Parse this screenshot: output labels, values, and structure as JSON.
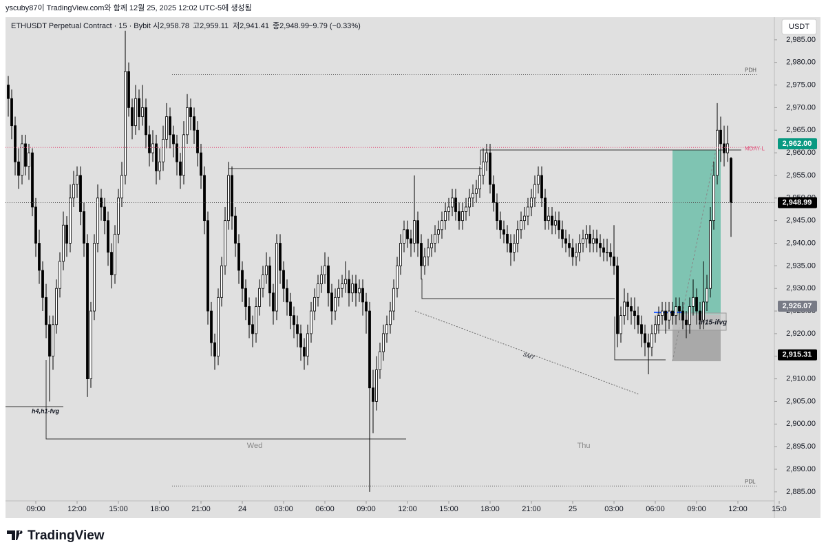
{
  "chart_data": {
    "type": "candlestick",
    "caption": "yscuby87이 TradingView.com와 함께 12월 25, 2025 12:02 UTC-5에 생성됨",
    "symbol": "ETHUSDT Perpetual Contract · 15 · Bybit",
    "ohlc_labels": [
      "시2,958.78",
      "고2,959.11",
      "저2,941.41",
      "종2,948.99",
      "−9.79 (−0.33%)"
    ],
    "currency": "USDT",
    "brand": "TradingView",
    "colors": {
      "up": "#ffffff",
      "down": "#000000",
      "outline": "#000000"
    },
    "ylim": [
      2883,
      2990
    ],
    "yticks": [
      {
        "value": 2885,
        "label": "2,885.00"
      },
      {
        "value": 2890,
        "label": "2,890.00"
      },
      {
        "value": 2895,
        "label": "2,895.00"
      },
      {
        "value": 2900,
        "label": "2,900.00"
      },
      {
        "value": 2905,
        "label": "2,905.00"
      },
      {
        "value": 2910,
        "label": "2,910.00"
      },
      {
        "value": 2915,
        "label": "2,915.00"
      },
      {
        "value": 2920,
        "label": "2,920.00"
      },
      {
        "value": 2925,
        "label": "2,925.00"
      },
      {
        "value": 2930,
        "label": "2,930.00"
      },
      {
        "value": 2935,
        "label": "2,935.00"
      },
      {
        "value": 2940,
        "label": "2,940.00"
      },
      {
        "value": 2945,
        "label": "2,945.00"
      },
      {
        "value": 2950,
        "label": "2,950.00"
      },
      {
        "value": 2955,
        "label": "2,955.00"
      },
      {
        "value": 2960,
        "label": "2,960.00"
      },
      {
        "value": 2965,
        "label": "2,965.00"
      },
      {
        "value": 2970,
        "label": "2,970.00"
      },
      {
        "value": 2975,
        "label": "2,975.00"
      },
      {
        "value": 2980,
        "label": "2,980.00"
      },
      {
        "value": 2985,
        "label": "2,985.00"
      }
    ],
    "xticks": [
      {
        "value": 8,
        "label": "09:00"
      },
      {
        "value": 20,
        "label": "12:00"
      },
      {
        "value": 32,
        "label": "15:00"
      },
      {
        "value": 44,
        "label": "18:00"
      },
      {
        "value": 56,
        "label": "21:00"
      },
      {
        "value": 68,
        "label": "24"
      },
      {
        "value": 80,
        "label": "03:00"
      },
      {
        "value": 92,
        "label": "06:00"
      },
      {
        "value": 104,
        "label": "09:00"
      },
      {
        "value": 116,
        "label": "12:00"
      },
      {
        "value": 128,
        "label": "15:00"
      },
      {
        "value": 140,
        "label": "18:00"
      },
      {
        "value": 152,
        "label": "21:00"
      },
      {
        "value": 164,
        "label": "25"
      },
      {
        "value": 176,
        "label": "03:00"
      },
      {
        "value": 188,
        "label": "06:00"
      },
      {
        "value": 200,
        "label": "09:00"
      },
      {
        "value": 212,
        "label": "12:00"
      },
      {
        "value": 224,
        "label": "15:0"
      }
    ],
    "levels": [
      {
        "label": "PDH",
        "value": 2977.3,
        "color": "#555555"
      },
      {
        "label": "MDAY-L",
        "value": 2961.2,
        "color": "#e0507a"
      },
      {
        "label": "PDL",
        "value": 2886.3,
        "color": "#555555"
      }
    ],
    "price_tags": [
      {
        "value": 2962,
        "label": "2,962.00",
        "color": "#089981"
      },
      {
        "value": 2948.99,
        "label": "2,948.99",
        "color": "#000000"
      },
      {
        "value": 2926.07,
        "label": "2,926.07",
        "color": "#787b86"
      },
      {
        "value": 2915.31,
        "label": "2,915.31",
        "color": "#000000"
      }
    ],
    "annotations": [
      "h4,h1-fvg",
      "m15-ifvg",
      "SMT",
      "Wed",
      "Thu"
    ],
    "candles": [
      [
        2975,
        2977,
        2968,
        2972
      ],
      [
        2972,
        2974,
        2963,
        2966
      ],
      [
        2966,
        2968,
        2955,
        2958
      ],
      [
        2958,
        2961,
        2952,
        2955
      ],
      [
        2955,
        2964,
        2953,
        2962
      ],
      [
        2962,
        2964,
        2955,
        2957
      ],
      [
        2957,
        2962,
        2954,
        2960
      ],
      [
        2960,
        2961,
        2946,
        2948
      ],
      [
        2948,
        2950,
        2937,
        2940
      ],
      [
        2940,
        2943,
        2931,
        2934
      ],
      [
        2934,
        2936,
        2925,
        2928
      ],
      [
        2928,
        2931,
        2919,
        2922
      ],
      [
        2922,
        2924,
        2905,
        2915
      ],
      [
        2915,
        2924,
        2912,
        2922
      ],
      [
        2922,
        2932,
        2920,
        2930
      ],
      [
        2930,
        2938,
        2928,
        2936
      ],
      [
        2936,
        2947,
        2934,
        2944
      ],
      [
        2944,
        2946,
        2937,
        2940
      ],
      [
        2940,
        2953,
        2938,
        2950
      ],
      [
        2950,
        2956,
        2948,
        2953
      ],
      [
        2953,
        2957,
        2950,
        2955
      ],
      [
        2955,
        2957,
        2944,
        2947
      ],
      [
        2947,
        2949,
        2937,
        2940
      ],
      [
        2940,
        2942,
        2906,
        2910
      ],
      [
        2910,
        2927,
        2908,
        2925
      ],
      [
        2925,
        2942,
        2923,
        2940
      ],
      [
        2940,
        2953,
        2938,
        2950
      ],
      [
        2950,
        2952,
        2945,
        2948
      ],
      [
        2948,
        2950,
        2942,
        2945
      ],
      [
        2945,
        2947,
        2935,
        2938
      ],
      [
        2938,
        2940,
        2930,
        2933
      ],
      [
        2933,
        2944,
        2931,
        2942
      ],
      [
        2942,
        2952,
        2940,
        2950
      ],
      [
        2950,
        2958,
        2948,
        2955
      ],
      [
        2955,
        2987,
        2953,
        2978
      ],
      [
        2978,
        2980,
        2968,
        2970
      ],
      [
        2970,
        2972,
        2963,
        2966
      ],
      [
        2966,
        2975,
        2964,
        2972
      ],
      [
        2972,
        2974,
        2965,
        2968
      ],
      [
        2968,
        2975,
        2966,
        2970
      ],
      [
        2970,
        2972,
        2961,
        2964
      ],
      [
        2964,
        2966,
        2957,
        2960
      ],
      [
        2960,
        2965,
        2958,
        2962
      ],
      [
        2962,
        2964,
        2953,
        2956
      ],
      [
        2956,
        2961,
        2954,
        2958
      ],
      [
        2958,
        2966,
        2956,
        2963
      ],
      [
        2963,
        2971,
        2961,
        2968
      ],
      [
        2968,
        2970,
        2961,
        2964
      ],
      [
        2964,
        2966,
        2959,
        2962
      ],
      [
        2962,
        2964,
        2955,
        2958
      ],
      [
        2958,
        2960,
        2952,
        2955
      ],
      [
        2955,
        2967,
        2953,
        2964
      ],
      [
        2964,
        2973,
        2962,
        2970
      ],
      [
        2970,
        2972,
        2965,
        2968
      ],
      [
        2968,
        2970,
        2962,
        2965
      ],
      [
        2965,
        2967,
        2957,
        2960
      ],
      [
        2960,
        2962,
        2952,
        2955
      ],
      [
        2955,
        2957,
        2942,
        2945
      ],
      [
        2945,
        2947,
        2922,
        2925
      ],
      [
        2925,
        2927,
        2915,
        2918
      ],
      [
        2918,
        2920,
        2912,
        2915
      ],
      [
        2915,
        2930,
        2913,
        2928
      ],
      [
        2928,
        2937,
        2926,
        2935
      ],
      [
        2935,
        2948,
        2933,
        2945
      ],
      [
        2945,
        2958,
        2943,
        2955
      ],
      [
        2955,
        2957,
        2943,
        2946
      ],
      [
        2946,
        2948,
        2937,
        2940
      ],
      [
        2940,
        2942,
        2931,
        2934
      ],
      [
        2934,
        2936,
        2927,
        2930
      ],
      [
        2930,
        2932,
        2923,
        2926
      ],
      [
        2926,
        2928,
        2919,
        2922
      ],
      [
        2922,
        2924,
        2917,
        2920
      ],
      [
        2920,
        2928,
        2918,
        2926
      ],
      [
        2926,
        2932,
        2924,
        2930
      ],
      [
        2930,
        2935,
        2928,
        2933
      ],
      [
        2933,
        2938,
        2931,
        2935
      ],
      [
        2935,
        2937,
        2926,
        2929
      ],
      [
        2929,
        2931,
        2922,
        2925
      ],
      [
        2925,
        2942,
        2923,
        2940
      ],
      [
        2940,
        2942,
        2931,
        2934
      ],
      [
        2934,
        2936,
        2927,
        2930
      ],
      [
        2930,
        2932,
        2924,
        2927
      ],
      [
        2927,
        2929,
        2921,
        2924
      ],
      [
        2924,
        2926,
        2919,
        2922
      ],
      [
        2922,
        2924,
        2917,
        2920
      ],
      [
        2920,
        2922,
        2914,
        2917
      ],
      [
        2917,
        2919,
        2912,
        2915
      ],
      [
        2915,
        2922,
        2913,
        2920
      ],
      [
        2920,
        2927,
        2918,
        2925
      ],
      [
        2925,
        2930,
        2923,
        2928
      ],
      [
        2928,
        2933,
        2926,
        2931
      ],
      [
        2931,
        2935,
        2929,
        2933
      ],
      [
        2933,
        2938,
        2931,
        2935
      ],
      [
        2935,
        2937,
        2926,
        2929
      ],
      [
        2929,
        2931,
        2922,
        2925
      ],
      [
        2925,
        2930,
        2923,
        2928
      ],
      [
        2928,
        2932,
        2926,
        2930
      ],
      [
        2930,
        2933,
        2928,
        2931
      ],
      [
        2931,
        2936,
        2929,
        2932
      ],
      [
        2932,
        2934,
        2926,
        2929
      ],
      [
        2929,
        2933,
        2927,
        2931
      ],
      [
        2931,
        2933,
        2926,
        2929
      ],
      [
        2929,
        2932,
        2927,
        2930
      ],
      [
        2930,
        2932,
        2924,
        2927
      ],
      [
        2927,
        2929,
        2920,
        2925
      ],
      [
        2925,
        2927,
        2885,
        2908
      ],
      [
        2908,
        2912,
        2898,
        2905
      ],
      [
        2905,
        2915,
        2903,
        2912
      ],
      [
        2912,
        2918,
        2910,
        2916
      ],
      [
        2916,
        2922,
        2914,
        2920
      ],
      [
        2920,
        2924,
        2918,
        2922
      ],
      [
        2922,
        2927,
        2920,
        2925
      ],
      [
        2925,
        2932,
        2923,
        2930
      ],
      [
        2930,
        2937,
        2928,
        2935
      ],
      [
        2935,
        2942,
        2933,
        2940
      ],
      [
        2940,
        2945,
        2938,
        2943
      ],
      [
        2943,
        2945,
        2939,
        2941
      ],
      [
        2941,
        2943,
        2937,
        2940
      ],
      [
        2940,
        2955,
        2938,
        2945
      ],
      [
        2945,
        2947,
        2937,
        2940
      ],
      [
        2940,
        2942,
        2932,
        2935
      ],
      [
        2935,
        2939,
        2933,
        2937
      ],
      [
        2937,
        2941,
        2935,
        2939
      ],
      [
        2939,
        2942,
        2937,
        2940
      ],
      [
        2940,
        2944,
        2938,
        2942
      ],
      [
        2942,
        2945,
        2940,
        2943
      ],
      [
        2943,
        2947,
        2941,
        2945
      ],
      [
        2945,
        2949,
        2943,
        2947
      ],
      [
        2947,
        2950,
        2945,
        2948
      ],
      [
        2948,
        2952,
        2946,
        2950
      ],
      [
        2950,
        2952,
        2945,
        2947
      ],
      [
        2947,
        2949,
        2943,
        2945
      ],
      [
        2945,
        2949,
        2943,
        2947
      ],
      [
        2947,
        2950,
        2945,
        2948
      ],
      [
        2948,
        2952,
        2946,
        2950
      ],
      [
        2950,
        2953,
        2948,
        2951
      ],
      [
        2951,
        2954,
        2949,
        2952
      ],
      [
        2952,
        2957,
        2950,
        2955
      ],
      [
        2955,
        2961,
        2953,
        2958
      ],
      [
        2958,
        2962,
        2956,
        2960
      ],
      [
        2960,
        2962,
        2951,
        2953
      ],
      [
        2953,
        2955,
        2947,
        2949
      ],
      [
        2949,
        2951,
        2943,
        2945
      ],
      [
        2945,
        2947,
        2941,
        2943
      ],
      [
        2943,
        2945,
        2940,
        2942
      ],
      [
        2942,
        2944,
        2938,
        2940
      ],
      [
        2940,
        2942,
        2935,
        2938
      ],
      [
        2938,
        2942,
        2936,
        2940
      ],
      [
        2940,
        2945,
        2938,
        2943
      ],
      [
        2943,
        2947,
        2941,
        2945
      ],
      [
        2945,
        2948,
        2943,
        2946
      ],
      [
        2946,
        2950,
        2944,
        2948
      ],
      [
        2948,
        2952,
        2946,
        2950
      ],
      [
        2950,
        2955,
        2948,
        2953
      ],
      [
        2953,
        2957,
        2951,
        2955
      ],
      [
        2955,
        2957,
        2948,
        2950
      ],
      [
        2950,
        2952,
        2943,
        2945
      ],
      [
        2945,
        2948,
        2943,
        2946
      ],
      [
        2946,
        2948,
        2942,
        2944
      ],
      [
        2944,
        2947,
        2942,
        2945
      ],
      [
        2945,
        2947,
        2941,
        2943
      ],
      [
        2943,
        2945,
        2939,
        2941
      ],
      [
        2941,
        2943,
        2938,
        2940
      ],
      [
        2940,
        2942,
        2937,
        2939
      ],
      [
        2939,
        2941,
        2935,
        2937
      ],
      [
        2937,
        2940,
        2935,
        2938
      ],
      [
        2938,
        2942,
        2936,
        2940
      ],
      [
        2940,
        2943,
        2938,
        2941
      ],
      [
        2941,
        2944,
        2939,
        2942
      ],
      [
        2942,
        2944,
        2938,
        2940
      ],
      [
        2940,
        2943,
        2938,
        2941
      ],
      [
        2941,
        2943,
        2938,
        2940
      ],
      [
        2940,
        2942,
        2937,
        2939
      ],
      [
        2939,
        2941,
        2936,
        2938
      ],
      [
        2938,
        2941,
        2936,
        2938
      ],
      [
        2938,
        2940,
        2935,
        2937
      ],
      [
        2937,
        2944,
        2933,
        2935
      ],
      [
        2935,
        2937,
        2917,
        2920
      ],
      [
        2920,
        2926,
        2918,
        2924
      ],
      [
        2924,
        2930,
        2922,
        2927
      ],
      [
        2927,
        2929,
        2923,
        2926
      ],
      [
        2926,
        2928,
        2922,
        2925
      ],
      [
        2925,
        2928,
        2921,
        2924
      ],
      [
        2924,
        2926,
        2920,
        2922
      ],
      [
        2922,
        2924,
        2917,
        2920
      ],
      [
        2920,
        2922,
        2915,
        2918
      ],
      [
        2918,
        2920,
        2911,
        2917
      ],
      [
        2917,
        2922,
        2915,
        2920
      ],
      [
        2920,
        2924,
        2918,
        2922
      ],
      [
        2922,
        2926,
        2920,
        2924
      ],
      [
        2924,
        2927,
        2922,
        2925
      ],
      [
        2925,
        2927,
        2920,
        2923
      ],
      [
        2923,
        2927,
        2921,
        2925
      ],
      [
        2925,
        2927,
        2922,
        2924
      ],
      [
        2924,
        2928,
        2922,
        2926
      ],
      [
        2926,
        2928,
        2923,
        2925
      ],
      [
        2925,
        2927,
        2921,
        2923
      ],
      [
        2923,
        2925,
        2919,
        2922
      ],
      [
        2922,
        2928,
        2920,
        2926
      ],
      [
        2926,
        2932,
        2924,
        2928
      ],
      [
        2928,
        2930,
        2922,
        2925
      ],
      [
        2925,
        2927,
        2921,
        2923
      ],
      [
        2923,
        2936,
        2921,
        2927
      ],
      [
        2927,
        2933,
        2925,
        2930
      ],
      [
        2930,
        2948,
        2928,
        2945
      ],
      [
        2945,
        2958,
        2943,
        2955
      ],
      [
        2955,
        2971,
        2953,
        2965
      ],
      [
        2965,
        2968,
        2958,
        2962
      ],
      [
        2962,
        2966,
        2957,
        2960
      ],
      [
        2960,
        2966,
        2958,
        2962
      ],
      [
        2958.78,
        2959.11,
        2941.41,
        2948.99
      ]
    ]
  }
}
